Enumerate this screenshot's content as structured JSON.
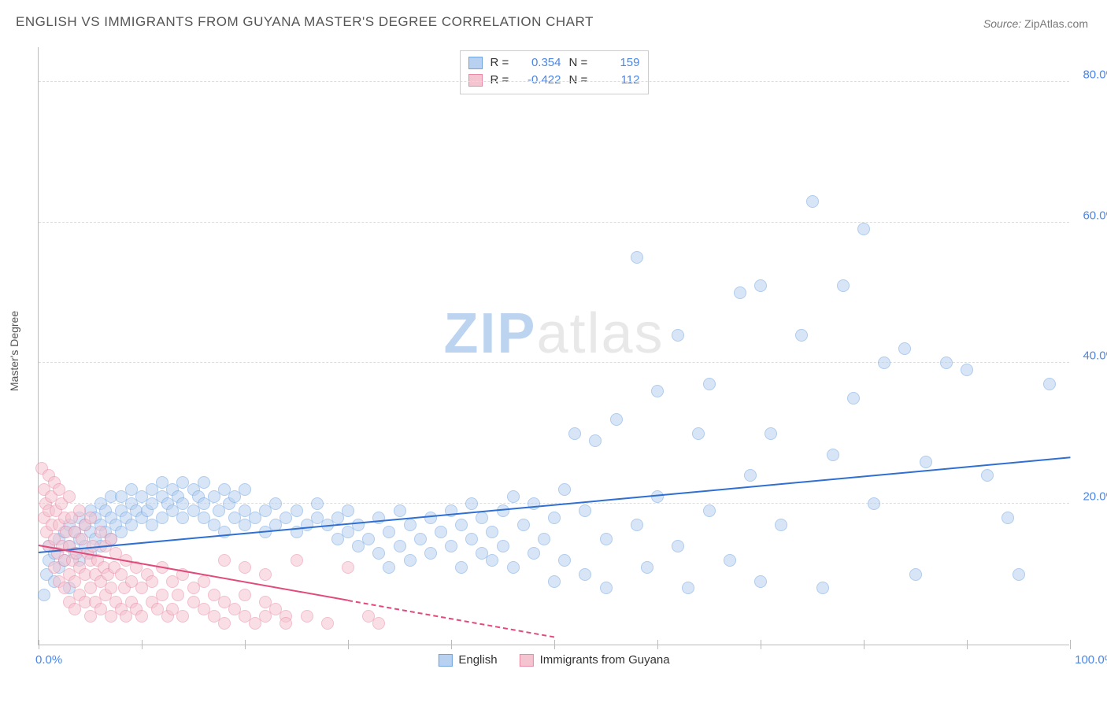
{
  "title": "ENGLISH VS IMMIGRANTS FROM GUYANA MASTER'S DEGREE CORRELATION CHART",
  "source_label": "Source:",
  "source_value": "ZipAtlas.com",
  "watermark": {
    "left": "ZIP",
    "right": "atlas"
  },
  "y_axis_title": "Master's Degree",
  "chart": {
    "type": "scatter",
    "xlim": [
      0,
      100
    ],
    "ylim": [
      0,
      85
    ],
    "x_tick_positions": [
      0,
      10,
      20,
      30,
      40,
      50,
      60,
      70,
      80,
      90,
      100
    ],
    "x_tick_labels_shown": {
      "0": "0.0%",
      "100": "100.0%"
    },
    "y_gridlines": [
      20,
      40,
      60,
      80
    ],
    "y_tick_labels": {
      "20": "20.0%",
      "40": "40.0%",
      "60": "60.0%",
      "80": "80.0%"
    },
    "background": "#ffffff",
    "grid_color": "#dddddd",
    "axis_color": "#bbbbbb",
    "tick_label_color": "#4a86e8",
    "point_radius": 8,
    "point_opacity": 0.55,
    "series": [
      {
        "id": "english",
        "label": "English",
        "fill": "#b8d1f0",
        "stroke": "#6fa3e0",
        "line_color": "#2f6fd1",
        "R": "0.354",
        "N": "159",
        "trend": {
          "x1": 0,
          "y1": 13.0,
          "x2": 100,
          "y2": 26.5,
          "dash_after_x": null
        },
        "points": [
          [
            0.5,
            7
          ],
          [
            0.8,
            10
          ],
          [
            1,
            12
          ],
          [
            1,
            14
          ],
          [
            1.5,
            9
          ],
          [
            1.5,
            13
          ],
          [
            2,
            11
          ],
          [
            2,
            15
          ],
          [
            2.5,
            12
          ],
          [
            2.5,
            16
          ],
          [
            3,
            8
          ],
          [
            3,
            14
          ],
          [
            3,
            17
          ],
          [
            3.5,
            13
          ],
          [
            3.5,
            16
          ],
          [
            4,
            12
          ],
          [
            4,
            15
          ],
          [
            4,
            18
          ],
          [
            4.5,
            14
          ],
          [
            4.5,
            17
          ],
          [
            5,
            13
          ],
          [
            5,
            16
          ],
          [
            5,
            19
          ],
          [
            5.5,
            15
          ],
          [
            5.5,
            18
          ],
          [
            6,
            14
          ],
          [
            6,
            17
          ],
          [
            6,
            20
          ],
          [
            6.5,
            16
          ],
          [
            6.5,
            19
          ],
          [
            7,
            15
          ],
          [
            7,
            18
          ],
          [
            7,
            21
          ],
          [
            7.5,
            17
          ],
          [
            8,
            16
          ],
          [
            8,
            19
          ],
          [
            8,
            21
          ],
          [
            8.5,
            18
          ],
          [
            9,
            17
          ],
          [
            9,
            20
          ],
          [
            9,
            22
          ],
          [
            9.5,
            19
          ],
          [
            10,
            18
          ],
          [
            10,
            21
          ],
          [
            10.5,
            19
          ],
          [
            11,
            17
          ],
          [
            11,
            20
          ],
          [
            11,
            22
          ],
          [
            12,
            18
          ],
          [
            12,
            21
          ],
          [
            12,
            23
          ],
          [
            12.5,
            20
          ],
          [
            13,
            19
          ],
          [
            13,
            22
          ],
          [
            13.5,
            21
          ],
          [
            14,
            18
          ],
          [
            14,
            20
          ],
          [
            14,
            23
          ],
          [
            15,
            19
          ],
          [
            15,
            22
          ],
          [
            15.5,
            21
          ],
          [
            16,
            18
          ],
          [
            16,
            20
          ],
          [
            16,
            23
          ],
          [
            17,
            17
          ],
          [
            17,
            21
          ],
          [
            17.5,
            19
          ],
          [
            18,
            16
          ],
          [
            18,
            22
          ],
          [
            18.5,
            20
          ],
          [
            19,
            18
          ],
          [
            19,
            21
          ],
          [
            20,
            17
          ],
          [
            20,
            19
          ],
          [
            20,
            22
          ],
          [
            21,
            18
          ],
          [
            22,
            19
          ],
          [
            22,
            16
          ],
          [
            23,
            20
          ],
          [
            23,
            17
          ],
          [
            24,
            18
          ],
          [
            25,
            19
          ],
          [
            25,
            16
          ],
          [
            26,
            17
          ],
          [
            27,
            18
          ],
          [
            27,
            20
          ],
          [
            28,
            17
          ],
          [
            29,
            15
          ],
          [
            29,
            18
          ],
          [
            30,
            16
          ],
          [
            30,
            19
          ],
          [
            31,
            14
          ],
          [
            31,
            17
          ],
          [
            32,
            15
          ],
          [
            33,
            13
          ],
          [
            33,
            18
          ],
          [
            34,
            16
          ],
          [
            34,
            11
          ],
          [
            35,
            14
          ],
          [
            35,
            19
          ],
          [
            36,
            12
          ],
          [
            36,
            17
          ],
          [
            37,
            15
          ],
          [
            38,
            13
          ],
          [
            38,
            18
          ],
          [
            39,
            16
          ],
          [
            40,
            14
          ],
          [
            40,
            19
          ],
          [
            41,
            11
          ],
          [
            41,
            17
          ],
          [
            42,
            15
          ],
          [
            42,
            20
          ],
          [
            43,
            13
          ],
          [
            43,
            18
          ],
          [
            44,
            12
          ],
          [
            44,
            16
          ],
          [
            45,
            14
          ],
          [
            45,
            19
          ],
          [
            46,
            11
          ],
          [
            46,
            21
          ],
          [
            47,
            17
          ],
          [
            48,
            13
          ],
          [
            48,
            20
          ],
          [
            49,
            15
          ],
          [
            50,
            9
          ],
          [
            50,
            18
          ],
          [
            51,
            12
          ],
          [
            51,
            22
          ],
          [
            52,
            30
          ],
          [
            53,
            10
          ],
          [
            53,
            19
          ],
          [
            54,
            29
          ],
          [
            55,
            8
          ],
          [
            55,
            15
          ],
          [
            56,
            32
          ],
          [
            58,
            55
          ],
          [
            58,
            17
          ],
          [
            59,
            11
          ],
          [
            60,
            21
          ],
          [
            60,
            36
          ],
          [
            62,
            14
          ],
          [
            62,
            44
          ],
          [
            63,
            8
          ],
          [
            64,
            30
          ],
          [
            65,
            19
          ],
          [
            65,
            37
          ],
          [
            67,
            12
          ],
          [
            68,
            50
          ],
          [
            69,
            24
          ],
          [
            70,
            51
          ],
          [
            70,
            9
          ],
          [
            71,
            30
          ],
          [
            72,
            17
          ],
          [
            74,
            44
          ],
          [
            75,
            63
          ],
          [
            76,
            8
          ],
          [
            77,
            27
          ],
          [
            78,
            51
          ],
          [
            79,
            35
          ],
          [
            80,
            59
          ],
          [
            81,
            20
          ],
          [
            82,
            40
          ],
          [
            84,
            42
          ],
          [
            85,
            10
          ],
          [
            86,
            26
          ],
          [
            88,
            40
          ],
          [
            90,
            39
          ],
          [
            92,
            24
          ],
          [
            94,
            18
          ],
          [
            95,
            10
          ],
          [
            98,
            37
          ]
        ]
      },
      {
        "id": "guyana",
        "label": "Immigrants from Guyana",
        "fill": "#f5c4d1",
        "stroke": "#e88aa5",
        "line_color": "#e14a7a",
        "R": "-0.422",
        "N": "112",
        "trend": {
          "x1": 0,
          "y1": 14.0,
          "x2": 50,
          "y2": 1.0,
          "dash_after_x": 30
        },
        "points": [
          [
            0.3,
            25
          ],
          [
            0.5,
            22
          ],
          [
            0.5,
            18
          ],
          [
            0.7,
            20
          ],
          [
            0.8,
            16
          ],
          [
            1,
            24
          ],
          [
            1,
            19
          ],
          [
            1,
            14
          ],
          [
            1.2,
            21
          ],
          [
            1.3,
            17
          ],
          [
            1.5,
            23
          ],
          [
            1.5,
            15
          ],
          [
            1.5,
            11
          ],
          [
            1.7,
            19
          ],
          [
            1.8,
            13
          ],
          [
            2,
            22
          ],
          [
            2,
            17
          ],
          [
            2,
            9
          ],
          [
            2.2,
            20
          ],
          [
            2.3,
            14
          ],
          [
            2.5,
            18
          ],
          [
            2.5,
            12
          ],
          [
            2.5,
            8
          ],
          [
            2.7,
            16
          ],
          [
            3,
            21
          ],
          [
            3,
            14
          ],
          [
            3,
            10
          ],
          [
            3,
            6
          ],
          [
            3.2,
            18
          ],
          [
            3.3,
            12
          ],
          [
            3.5,
            16
          ],
          [
            3.5,
            9
          ],
          [
            3.5,
            5
          ],
          [
            3.7,
            13
          ],
          [
            4,
            19
          ],
          [
            4,
            11
          ],
          [
            4,
            7
          ],
          [
            4.2,
            15
          ],
          [
            4.5,
            17
          ],
          [
            4.5,
            10
          ],
          [
            4.5,
            6
          ],
          [
            4.7,
            13
          ],
          [
            5,
            18
          ],
          [
            5,
            12
          ],
          [
            5,
            8
          ],
          [
            5,
            4
          ],
          [
            5.3,
            14
          ],
          [
            5.5,
            10
          ],
          [
            5.5,
            6
          ],
          [
            5.7,
            12
          ],
          [
            6,
            16
          ],
          [
            6,
            9
          ],
          [
            6,
            5
          ],
          [
            6.3,
            11
          ],
          [
            6.5,
            14
          ],
          [
            6.5,
            7
          ],
          [
            6.7,
            10
          ],
          [
            7,
            15
          ],
          [
            7,
            8
          ],
          [
            7,
            4
          ],
          [
            7.3,
            11
          ],
          [
            7.5,
            6
          ],
          [
            7.5,
            13
          ],
          [
            8,
            10
          ],
          [
            8,
            5
          ],
          [
            8.3,
            8
          ],
          [
            8.5,
            12
          ],
          [
            8.5,
            4
          ],
          [
            9,
            9
          ],
          [
            9,
            6
          ],
          [
            9.5,
            11
          ],
          [
            9.5,
            5
          ],
          [
            10,
            8
          ],
          [
            10,
            4
          ],
          [
            10.5,
            10
          ],
          [
            11,
            6
          ],
          [
            11,
            9
          ],
          [
            11.5,
            5
          ],
          [
            12,
            11
          ],
          [
            12,
            7
          ],
          [
            12.5,
            4
          ],
          [
            13,
            9
          ],
          [
            13,
            5
          ],
          [
            13.5,
            7
          ],
          [
            14,
            10
          ],
          [
            14,
            4
          ],
          [
            15,
            6
          ],
          [
            15,
            8
          ],
          [
            16,
            5
          ],
          [
            16,
            9
          ],
          [
            17,
            4
          ],
          [
            17,
            7
          ],
          [
            18,
            6
          ],
          [
            18,
            3
          ],
          [
            19,
            5
          ],
          [
            20,
            4
          ],
          [
            20,
            7
          ],
          [
            21,
            3
          ],
          [
            22,
            6
          ],
          [
            22,
            4
          ],
          [
            23,
            5
          ],
          [
            24,
            4
          ],
          [
            18,
            12
          ],
          [
            20,
            11
          ],
          [
            22,
            10
          ],
          [
            24,
            3
          ],
          [
            25,
            12
          ],
          [
            26,
            4
          ],
          [
            28,
            3
          ],
          [
            30,
            11
          ],
          [
            32,
            4
          ],
          [
            33,
            3
          ]
        ]
      }
    ]
  },
  "stats_legend": {
    "r_label": "R =",
    "n_label": "N ="
  }
}
